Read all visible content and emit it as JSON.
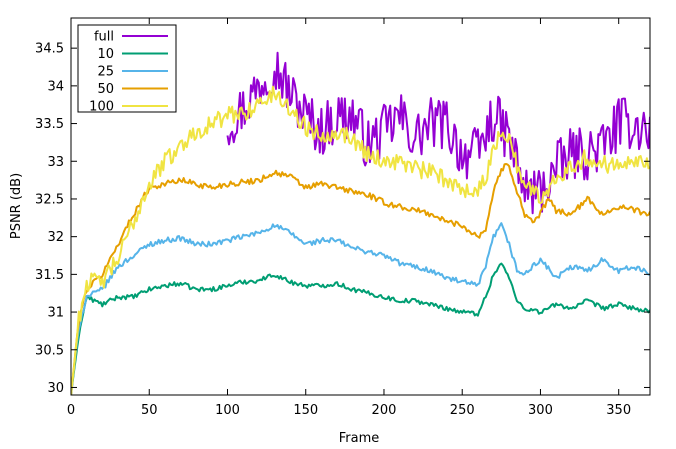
{
  "chart_data": {
    "type": "line",
    "xlabel": "Frame",
    "ylabel": "PSNR (dB)",
    "xlim": [
      0,
      370
    ],
    "ylim": [
      29.9,
      34.9
    ],
    "x_ticks": [
      0,
      50,
      100,
      150,
      200,
      250,
      300,
      350
    ],
    "y_ticks": [
      30,
      30.5,
      31,
      31.5,
      32,
      32.5,
      33,
      33.5,
      34,
      34.5
    ],
    "y_tick_labels": [
      "30",
      "30.5",
      "31",
      "31.5",
      "32",
      "32.5",
      "33",
      "33.5",
      "34",
      "34.5"
    ],
    "legend_placement": "top-left",
    "series": [
      {
        "name": "full",
        "color": "#9400d3",
        "noise": 0.35,
        "x": [
          100,
          110,
          120,
          130,
          140,
          150,
          160,
          170,
          180,
          190,
          200,
          210,
          220,
          230,
          240,
          250,
          260,
          270,
          280,
          290,
          300,
          310,
          320,
          330,
          340,
          350,
          360,
          370
        ],
        "y": [
          33.5,
          33.7,
          34.0,
          34.3,
          33.9,
          33.6,
          33.4,
          33.6,
          33.6,
          33.2,
          33.4,
          33.6,
          33.3,
          33.5,
          33.5,
          33.1,
          33.1,
          33.6,
          33.3,
          32.6,
          32.6,
          32.9,
          33.1,
          33.1,
          33.2,
          33.5,
          33.5,
          33.4
        ]
      },
      {
        "name": "10",
        "color": "#009e73",
        "noise": 0.03,
        "x": [
          0,
          5,
          10,
          20,
          30,
          40,
          50,
          60,
          70,
          80,
          90,
          100,
          110,
          120,
          130,
          140,
          150,
          160,
          170,
          180,
          190,
          200,
          210,
          220,
          230,
          240,
          250,
          260,
          265,
          270,
          275,
          280,
          285,
          290,
          300,
          310,
          320,
          330,
          340,
          350,
          360,
          370
        ],
        "y": [
          29.9,
          30.7,
          31.2,
          31.1,
          31.2,
          31.2,
          31.3,
          31.35,
          31.38,
          31.3,
          31.3,
          31.35,
          31.4,
          31.42,
          31.5,
          31.4,
          31.35,
          31.35,
          31.38,
          31.3,
          31.25,
          31.2,
          31.15,
          31.15,
          31.1,
          31.05,
          31.0,
          30.98,
          31.2,
          31.5,
          31.65,
          31.45,
          31.15,
          31.05,
          31.0,
          31.1,
          31.05,
          31.15,
          31.05,
          31.1,
          31.05,
          31.0
        ]
      },
      {
        "name": "25",
        "color": "#56b4e9",
        "noise": 0.035,
        "x": [
          0,
          5,
          10,
          20,
          30,
          40,
          50,
          60,
          70,
          80,
          90,
          100,
          110,
          120,
          130,
          140,
          150,
          160,
          170,
          180,
          190,
          200,
          210,
          220,
          230,
          240,
          250,
          260,
          265,
          270,
          275,
          280,
          285,
          290,
          300,
          310,
          320,
          330,
          340,
          350,
          360,
          370
        ],
        "y": [
          29.9,
          30.8,
          31.2,
          31.3,
          31.6,
          31.75,
          31.9,
          31.95,
          31.98,
          31.9,
          31.9,
          31.95,
          32.0,
          32.05,
          32.15,
          32.05,
          31.9,
          31.95,
          31.95,
          31.85,
          31.8,
          31.75,
          31.65,
          31.6,
          31.55,
          31.45,
          31.4,
          31.35,
          31.6,
          32.0,
          32.15,
          31.9,
          31.55,
          31.5,
          31.7,
          31.45,
          31.6,
          31.55,
          31.7,
          31.55,
          31.6,
          31.5
        ]
      },
      {
        "name": "50",
        "color": "#e69f00",
        "noise": 0.04,
        "x": [
          0,
          5,
          10,
          20,
          30,
          40,
          50,
          60,
          70,
          80,
          90,
          100,
          110,
          120,
          130,
          140,
          150,
          160,
          170,
          180,
          190,
          200,
          210,
          220,
          230,
          240,
          250,
          260,
          265,
          270,
          275,
          280,
          285,
          290,
          295,
          300,
          305,
          310,
          320,
          330,
          340,
          350,
          360,
          370
        ],
        "y": [
          29.9,
          30.9,
          31.3,
          31.5,
          31.9,
          32.3,
          32.65,
          32.7,
          32.75,
          32.7,
          32.65,
          32.7,
          32.72,
          32.75,
          32.85,
          32.8,
          32.65,
          32.7,
          32.65,
          32.6,
          32.55,
          32.45,
          32.4,
          32.35,
          32.3,
          32.2,
          32.15,
          32.0,
          32.1,
          32.6,
          32.9,
          32.95,
          32.6,
          32.3,
          32.2,
          32.3,
          32.5,
          32.35,
          32.3,
          32.5,
          32.3,
          32.4,
          32.35,
          32.3
        ]
      },
      {
        "name": "100",
        "color": "#f0e442",
        "noise": 0.12,
        "x": [
          0,
          5,
          10,
          20,
          30,
          40,
          50,
          60,
          70,
          80,
          90,
          100,
          110,
          120,
          130,
          140,
          150,
          160,
          170,
          180,
          190,
          200,
          210,
          220,
          230,
          240,
          250,
          260,
          265,
          270,
          275,
          280,
          285,
          290,
          300,
          310,
          320,
          330,
          340,
          350,
          360,
          370
        ],
        "y": [
          29.9,
          30.9,
          31.4,
          31.4,
          31.7,
          32.2,
          32.7,
          33.0,
          33.2,
          33.4,
          33.5,
          33.6,
          33.65,
          33.75,
          33.9,
          33.7,
          33.45,
          33.35,
          33.4,
          33.3,
          33.1,
          33.0,
          33.0,
          32.9,
          32.85,
          32.75,
          32.65,
          32.6,
          32.8,
          33.1,
          33.45,
          33.3,
          32.95,
          32.7,
          32.5,
          32.8,
          32.95,
          33.05,
          32.95,
          33.0,
          33.05,
          32.95
        ]
      }
    ]
  }
}
